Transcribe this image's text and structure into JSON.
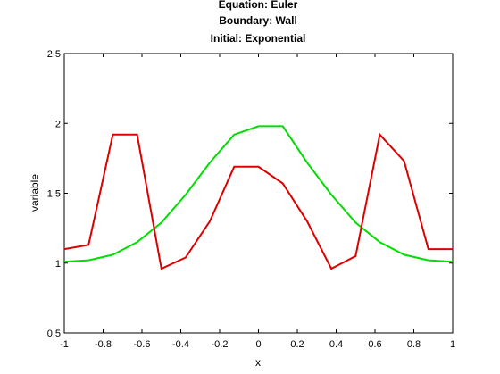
{
  "chart_data": {
    "type": "line",
    "title": [
      "Equation: Euler",
      "Boundary: Wall",
      "Initial: Exponential"
    ],
    "xlabel": "x",
    "ylabel": "variable",
    "xlim": [
      -1,
      1
    ],
    "ylim": [
      0.5,
      2.5
    ],
    "xticks": [
      -1,
      -0.8,
      -0.6,
      -0.4,
      -0.2,
      0,
      0.2,
      0.4,
      0.6,
      0.8,
      1
    ],
    "xtick_labels": [
      "-1",
      "-0.8",
      "-0.6",
      "-0.4",
      "-0.2",
      "0",
      "0.2",
      "0.4",
      "0.6",
      "0.8",
      "1"
    ],
    "yticks": [
      0.5,
      1,
      1.5,
      2,
      2.5
    ],
    "ytick_labels": [
      "0.5",
      "1",
      "1.5",
      "2",
      "2.5"
    ],
    "grid": false,
    "series": [
      {
        "color": "#00dd00",
        "x": [
          -1,
          -0.875,
          -0.75,
          -0.625,
          -0.5,
          -0.375,
          -0.25,
          -0.125,
          0,
          0.125,
          0.25,
          0.375,
          0.5,
          0.625,
          0.75,
          0.875,
          1
        ],
        "y": [
          1.01,
          1.02,
          1.06,
          1.15,
          1.29,
          1.49,
          1.72,
          1.92,
          1.98,
          1.98,
          1.72,
          1.49,
          1.29,
          1.15,
          1.06,
          1.02,
          1.01
        ]
      },
      {
        "color": "#dd0000",
        "x": [
          -1,
          -0.875,
          -0.75,
          -0.625,
          -0.5,
          -0.375,
          -0.25,
          -0.125,
          0,
          0.125,
          0.25,
          0.375,
          0.5,
          0.625,
          0.75,
          0.875,
          1
        ],
        "y": [
          1.1,
          1.13,
          1.92,
          1.92,
          0.96,
          1.04,
          1.3,
          1.69,
          1.69,
          1.57,
          1.3,
          0.96,
          1.05,
          1.92,
          1.73,
          1.1,
          1.1
        ]
      }
    ]
  }
}
